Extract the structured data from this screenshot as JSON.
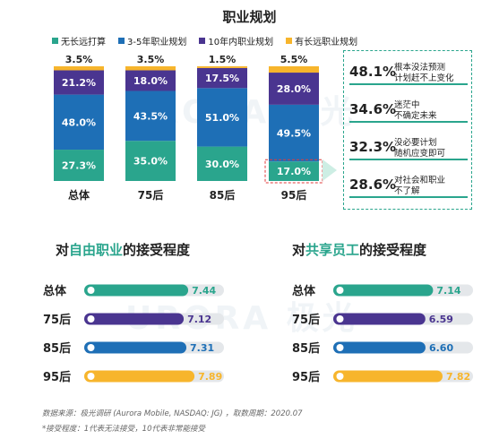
{
  "page": {
    "title": "职业规划",
    "section_left": {
      "prefix": "对",
      "highlight": "自由职业",
      "suffix": "的接受程度"
    },
    "section_right": {
      "prefix": "对",
      "highlight": "共享员工",
      "suffix": "的接受程度"
    },
    "watermark": "URORA 极光",
    "footnote_line1": "数据来源：极光调研 (Aurora Mobile, NASDAQ: JG) ，取数周期：2020.07",
    "footnote_line2": "*接受程度：1代表无法接受，10代表非常能接受"
  },
  "callouts": [
    {
      "pct": "48.1%",
      "line1": "根本没法预测",
      "line2": "计划赶不上变化"
    },
    {
      "pct": "34.6%",
      "line1": "迷茫中",
      "line2": "不确定未来"
    },
    {
      "pct": "32.3%",
      "line1": "没必要计划",
      "line2": "随机应变即可"
    },
    {
      "pct": "28.6%",
      "line1": "对社会和职业",
      "line2": "不了解"
    }
  ],
  "colors": {
    "teal": "#2aa58d",
    "blue": "#1e6fb6",
    "purple": "#4a3590",
    "yellow": "#f7b52c",
    "track": "#e4e7ea"
  },
  "chart_data": [
    {
      "type": "bar",
      "stacked": true,
      "title": "职业规划",
      "categories": [
        "总体",
        "75后",
        "85后",
        "95后"
      ],
      "series": [
        {
          "name": "无长远打算",
          "color": "#2aa58d",
          "values": [
            27.3,
            35.0,
            30.0,
            17.0
          ]
        },
        {
          "name": "3-5年职业规划",
          "color": "#1e6fb6",
          "values": [
            48.0,
            43.5,
            51.0,
            49.5
          ]
        },
        {
          "name": "10年内职业规划",
          "color": "#4a3590",
          "values": [
            21.2,
            18.0,
            17.5,
            28.0
          ]
        },
        {
          "name": "有长远职业规划",
          "color": "#f7b52c",
          "values": [
            3.5,
            3.5,
            1.5,
            5.5
          ]
        }
      ],
      "legend": "top",
      "ylim": [
        0,
        100
      ]
    },
    {
      "type": "bar",
      "orientation": "horizontal",
      "title": "对自由职业的接受程度",
      "categories": [
        "总体",
        "75后",
        "85后",
        "95后"
      ],
      "values": [
        7.44,
        7.12,
        7.31,
        7.89
      ],
      "colors": [
        "#2aa58d",
        "#4a3590",
        "#1e6fb6",
        "#f7b52c"
      ],
      "xlim": [
        0,
        10
      ]
    },
    {
      "type": "bar",
      "orientation": "horizontal",
      "title": "对共享员工的接受程度",
      "categories": [
        "总体",
        "75后",
        "85后",
        "95后"
      ],
      "values": [
        7.14,
        6.59,
        6.6,
        7.82
      ],
      "colors": [
        "#2aa58d",
        "#4a3590",
        "#1e6fb6",
        "#f7b52c"
      ],
      "xlim": [
        0,
        10
      ]
    }
  ]
}
